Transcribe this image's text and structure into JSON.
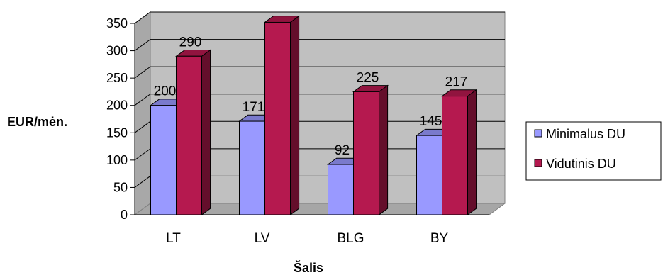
{
  "chart_data": {
    "type": "bar",
    "categories": [
      "LT",
      "LV",
      "BLG",
      "BY"
    ],
    "series": [
      {
        "name": "Minimalus DU",
        "values": [
          200,
          171,
          92,
          145
        ],
        "labels": [
          "200",
          "171",
          "92",
          "145"
        ],
        "color": "#9999ff"
      },
      {
        "name": "Vidutinis DU",
        "values": [
          290,
          352,
          225,
          217
        ],
        "labels": [
          "290",
          "",
          "225",
          "217"
        ],
        "color": "#b5194f"
      }
    ],
    "ylim": [
      0,
      350
    ],
    "yticks": [
      "0",
      "50",
      "100",
      "150",
      "200",
      "250",
      "300",
      "350"
    ],
    "ytick_values": [
      0,
      50,
      100,
      150,
      200,
      250,
      300,
      350
    ],
    "xlabel": "Šalis",
    "ylabel": "EUR/mėn.",
    "grid": true,
    "legend_position": "right",
    "wall_color": "#c0c0c0",
    "floor_color": "#a6a6a6"
  }
}
